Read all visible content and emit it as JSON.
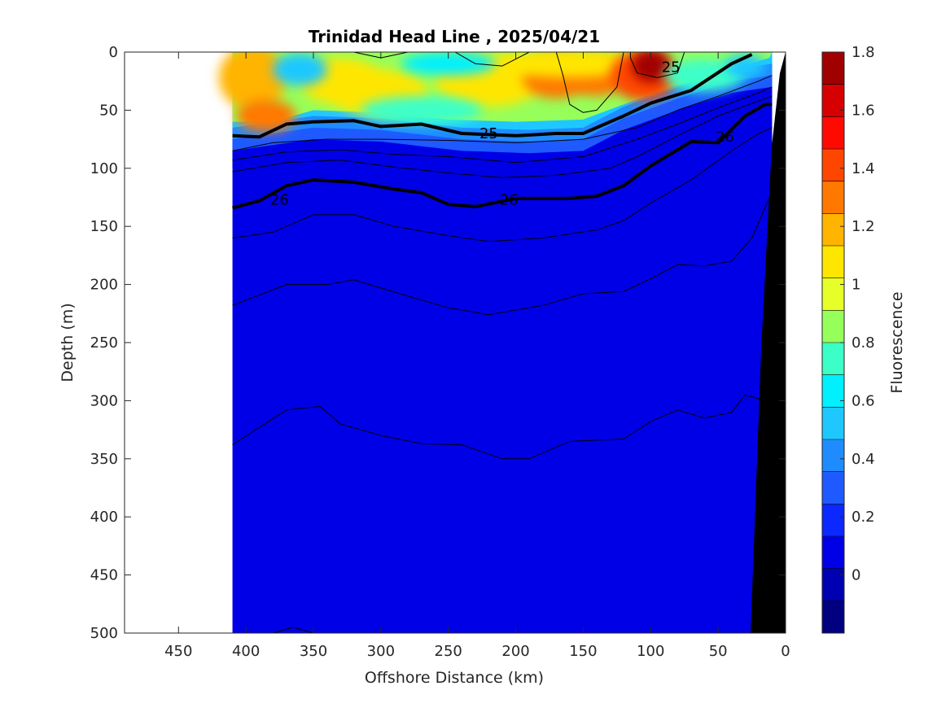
{
  "chart_data": {
    "type": "heatmap",
    "title": "Trinidad Head Line , 2025/04/21",
    "xlabel": "Offshore Distance (km)",
    "ylabel": "Depth (m)",
    "xlim": [
      490,
      0
    ],
    "ylim": [
      500,
      0
    ],
    "x_ticks": [
      "450",
      "400",
      "350",
      "300",
      "250",
      "200",
      "150",
      "100",
      "50",
      "0"
    ],
    "x_tick_values": [
      450,
      400,
      350,
      300,
      250,
      200,
      150,
      100,
      50,
      0
    ],
    "y_ticks": [
      "0",
      "50",
      "100",
      "150",
      "200",
      "250",
      "300",
      "350",
      "400",
      "450",
      "500"
    ],
    "y_tick_values": [
      0,
      50,
      100,
      150,
      200,
      250,
      300,
      350,
      400,
      450,
      500
    ],
    "data_extent_km": [
      410,
      10
    ],
    "colorbar": {
      "label": "Fluorescence",
      "range": [
        -0.2,
        1.8
      ],
      "ticks": [
        "0",
        "0.2",
        "0.4",
        "0.6",
        "0.8",
        "1",
        "1.2",
        "1.4",
        "1.6",
        "1.8"
      ],
      "tick_values": [
        0,
        0.2,
        0.4,
        0.6,
        0.8,
        1.0,
        1.2,
        1.4,
        1.6,
        1.8
      ],
      "colors": [
        "#000080",
        "#0000b3",
        "#0000e6",
        "#0a28ff",
        "#1e5aff",
        "#1e8cff",
        "#1ec8ff",
        "#00f0ff",
        "#3cffc8",
        "#96ff5a",
        "#e6ff28",
        "#ffe600",
        "#ffb400",
        "#ff7800",
        "#ff4600",
        "#ff0a00",
        "#d70000",
        "#a00000"
      ]
    },
    "contour_labels": [
      {
        "text": "25",
        "x": 85,
        "y": 13
      },
      {
        "text": "25",
        "x": 220,
        "y": 70
      },
      {
        "text": "26",
        "x": 375,
        "y": 127
      },
      {
        "text": "26",
        "x": 205,
        "y": 127
      },
      {
        "text": "26",
        "x": 45,
        "y": 73
      }
    ],
    "isopycnals": [
      {
        "label": "25",
        "bold": true,
        "points": [
          [
            410,
            72
          ],
          [
            390,
            73
          ],
          [
            370,
            62
          ],
          [
            350,
            60
          ],
          [
            320,
            59
          ],
          [
            300,
            64
          ],
          [
            270,
            62
          ],
          [
            240,
            70
          ],
          [
            200,
            72
          ],
          [
            170,
            70
          ],
          [
            150,
            70
          ],
          [
            120,
            55
          ],
          [
            100,
            44
          ],
          [
            70,
            33
          ],
          [
            40,
            10
          ],
          [
            25,
            2
          ]
        ]
      },
      {
        "label": "26",
        "bold": true,
        "points": [
          [
            410,
            134
          ],
          [
            390,
            128
          ],
          [
            370,
            115
          ],
          [
            350,
            110
          ],
          [
            320,
            112
          ],
          [
            290,
            118
          ],
          [
            270,
            121
          ],
          [
            250,
            131
          ],
          [
            230,
            133
          ],
          [
            200,
            126
          ],
          [
            160,
            126
          ],
          [
            140,
            124
          ],
          [
            120,
            115
          ],
          [
            100,
            98
          ],
          [
            70,
            77
          ],
          [
            50,
            78
          ],
          [
            30,
            55
          ],
          [
            15,
            45
          ],
          [
            10,
            45
          ]
        ]
      },
      {
        "bold": false,
        "points": [
          [
            410,
            85
          ],
          [
            380,
            78
          ],
          [
            340,
            75
          ],
          [
            300,
            75
          ],
          [
            250,
            76
          ],
          [
            200,
            78
          ],
          [
            150,
            75
          ],
          [
            110,
            65
          ],
          [
            80,
            50
          ],
          [
            50,
            38
          ],
          [
            20,
            25
          ],
          [
            10,
            20
          ]
        ]
      },
      {
        "bold": false,
        "points": [
          [
            410,
            93
          ],
          [
            370,
            86
          ],
          [
            330,
            84
          ],
          [
            290,
            88
          ],
          [
            250,
            90
          ],
          [
            200,
            95
          ],
          [
            150,
            90
          ],
          [
            110,
            75
          ],
          [
            80,
            62
          ],
          [
            50,
            48
          ],
          [
            20,
            35
          ],
          [
            10,
            30
          ]
        ]
      },
      {
        "bold": false,
        "points": [
          [
            410,
            103
          ],
          [
            370,
            95
          ],
          [
            330,
            93
          ],
          [
            290,
            99
          ],
          [
            250,
            104
          ],
          [
            210,
            108
          ],
          [
            170,
            106
          ],
          [
            130,
            100
          ],
          [
            110,
            90
          ],
          [
            80,
            72
          ],
          [
            50,
            55
          ],
          [
            20,
            42
          ],
          [
            10,
            38
          ]
        ]
      },
      {
        "bold": false,
        "points": [
          [
            410,
            160
          ],
          [
            380,
            155
          ],
          [
            350,
            140
          ],
          [
            320,
            140
          ],
          [
            290,
            150
          ],
          [
            250,
            158
          ],
          [
            220,
            163
          ],
          [
            180,
            160
          ],
          [
            140,
            153
          ],
          [
            120,
            145
          ],
          [
            100,
            130
          ],
          [
            70,
            110
          ],
          [
            40,
            85
          ],
          [
            20,
            70
          ],
          [
            10,
            65
          ]
        ]
      },
      {
        "bold": false,
        "points": [
          [
            410,
            218
          ],
          [
            370,
            200
          ],
          [
            340,
            200
          ],
          [
            320,
            196
          ],
          [
            280,
            210
          ],
          [
            250,
            220
          ],
          [
            220,
            226
          ],
          [
            180,
            218
          ],
          [
            150,
            208
          ],
          [
            120,
            206
          ],
          [
            100,
            195
          ],
          [
            80,
            183
          ],
          [
            60,
            184
          ],
          [
            40,
            180
          ],
          [
            25,
            160
          ],
          [
            10,
            120
          ]
        ]
      },
      {
        "bold": false,
        "points": [
          [
            410,
            338
          ],
          [
            370,
            308
          ],
          [
            345,
            305
          ],
          [
            330,
            320
          ],
          [
            300,
            330
          ],
          [
            270,
            337
          ],
          [
            240,
            338
          ],
          [
            210,
            350
          ],
          [
            190,
            350
          ],
          [
            160,
            335
          ],
          [
            120,
            333
          ],
          [
            100,
            318
          ],
          [
            80,
            308
          ],
          [
            60,
            315
          ],
          [
            40,
            310
          ],
          [
            30,
            295
          ],
          [
            15,
            300
          ]
        ]
      },
      {
        "bold": false,
        "points": [
          [
            380,
            500
          ],
          [
            365,
            495
          ],
          [
            350,
            500
          ]
        ]
      },
      {
        "bold": false,
        "points": [
          [
            320,
            0
          ],
          [
            300,
            5
          ],
          [
            280,
            0
          ]
        ]
      },
      {
        "bold": false,
        "points": [
          [
            245,
            0
          ],
          [
            230,
            10
          ],
          [
            210,
            12
          ],
          [
            190,
            0
          ]
        ]
      },
      {
        "bold": false,
        "points": [
          [
            120,
            0
          ],
          [
            125,
            30
          ],
          [
            140,
            50
          ],
          [
            150,
            52
          ],
          [
            160,
            45
          ],
          [
            165,
            20
          ],
          [
            170,
            0
          ]
        ]
      },
      {
        "bold": false,
        "points": [
          [
            75,
            0
          ],
          [
            80,
            18
          ],
          [
            95,
            22
          ],
          [
            110,
            18
          ],
          [
            115,
            5
          ],
          [
            115,
            0
          ]
        ]
      }
    ]
  }
}
